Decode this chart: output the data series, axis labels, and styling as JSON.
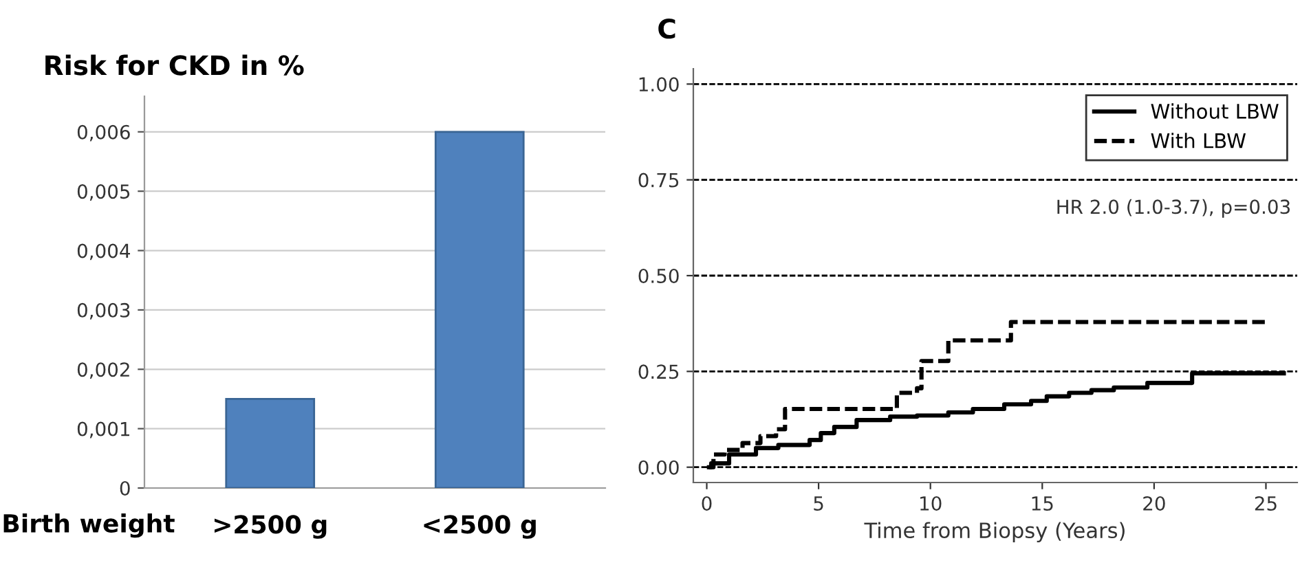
{
  "chart_data": [
    {
      "type": "bar",
      "title": "Risk for CKD in %",
      "xlabel": "Birth weight",
      "categories": [
        ">2500 g",
        "<2500 g"
      ],
      "values": [
        0.0015,
        0.006
      ],
      "color": "#4f81bd",
      "ylim": [
        0,
        0.0066
      ],
      "yticks": [
        0,
        {
          "value": 0.001,
          "label": "0,001"
        },
        {
          "value": 0.002,
          "label": "0,002"
        },
        {
          "value": 0.003,
          "label": "0,003"
        },
        {
          "value": 0.004,
          "label": "0,004"
        },
        {
          "value": 0.005,
          "label": "0,005"
        },
        {
          "value": 0.006,
          "label": "0,006"
        }
      ],
      "grid": "y"
    },
    {
      "type": "step",
      "title": "C",
      "xlabel": "Time from Biopsy (Years)",
      "legend": "top right",
      "xlim": [
        -0.6,
        26.4
      ],
      "xticks": [
        0,
        5,
        10,
        15,
        20,
        25
      ],
      "ylim": [
        -0.04,
        1.04
      ],
      "yticks": [
        {
          "value": 0,
          "label": "0.00"
        },
        {
          "value": 0.25,
          "label": "0.25"
        },
        {
          "value": 0.5,
          "label": "0.50"
        },
        {
          "value": 0.75,
          "label": "0.75"
        },
        {
          "value": 1,
          "label": "1.00"
        }
      ],
      "annotations": [
        "HR 2.0 (1.0-3.7), p=0.03"
      ],
      "ref_lines": [
        {
          "axis": "y",
          "value": 0,
          "line_style": "dashed",
          "color": "#000000"
        },
        {
          "axis": "y",
          "value": 0.25,
          "line_style": "dashed",
          "color": "#000000"
        },
        {
          "axis": "y",
          "value": 0.5,
          "line_style": "dashed",
          "color": "#000000"
        },
        {
          "axis": "y",
          "value": 0.75,
          "line_style": "dashed",
          "color": "#000000"
        },
        {
          "axis": "y",
          "value": 1,
          "line_style": "dashed",
          "color": "#000000"
        }
      ],
      "series": [
        {
          "name": "Without LBW",
          "color": "#000000",
          "line_style": "solid",
          "x": [
            0.1,
            0.2,
            1.0,
            2.2,
            3.2,
            4.6,
            5.1,
            5.7,
            6.7,
            8.2,
            9.4,
            10.8,
            11.9,
            13.3,
            14.5,
            15.2,
            16.2,
            17.2,
            18.2,
            19.7,
            21.7,
            25.8
          ],
          "values": [
            0,
            0.01,
            0.033,
            0.05,
            0.058,
            0.071,
            0.089,
            0.105,
            0.123,
            0.132,
            0.135,
            0.143,
            0.152,
            0.164,
            0.173,
            0.185,
            0.194,
            0.201,
            0.208,
            0.22,
            0.245,
            0.245
          ]
        },
        {
          "name": "With LBW",
          "color": "#000000",
          "line_style": "dashed",
          "x": [
            0.1,
            0.3,
            0.8,
            1.6,
            2.4,
            3.1,
            3.5,
            8.2,
            8.5,
            9.4,
            9.6,
            10.8,
            13.6,
            25.1
          ],
          "values": [
            0,
            0.033,
            0.045,
            0.063,
            0.081,
            0.099,
            0.152,
            0.152,
            0.194,
            0.206,
            0.277,
            0.331,
            0.379,
            0.379
          ]
        }
      ]
    }
  ]
}
